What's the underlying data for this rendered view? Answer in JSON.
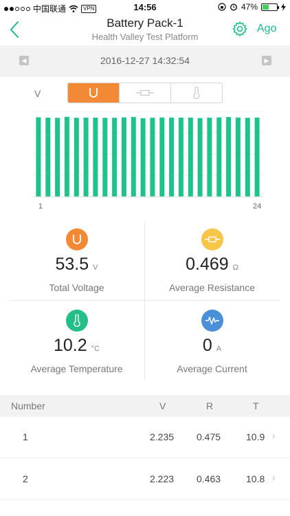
{
  "status_bar": {
    "carrier": "中国联通",
    "vpn": "VPN",
    "time": "14:56",
    "battery_percent": "47%",
    "battery_level": 0.47
  },
  "nav": {
    "title": "Battery Pack-1",
    "subtitle": "Health Valley Test Platform",
    "ago_label": "Ago",
    "accent_color": "#19b98a"
  },
  "date_bar": {
    "datetime": "2016-12-27 14:32:54"
  },
  "segment": {
    "label": "V",
    "options": [
      "voltage-icon",
      "resistance-icon",
      "temperature-icon"
    ],
    "active_index": 0,
    "active_color": "#f28a35"
  },
  "chart_data": {
    "type": "bar",
    "categories": [
      "1",
      "2",
      "3",
      "4",
      "5",
      "6",
      "7",
      "8",
      "9",
      "10",
      "11",
      "12",
      "13",
      "14",
      "15",
      "16",
      "17",
      "18",
      "19",
      "20",
      "21",
      "22",
      "23",
      "24"
    ],
    "values": [
      2.235,
      2.223,
      2.22,
      2.25,
      2.222,
      2.228,
      2.226,
      2.22,
      2.222,
      2.234,
      2.244,
      2.21,
      2.222,
      2.23,
      2.228,
      2.226,
      2.226,
      2.215,
      2.224,
      2.232,
      2.244,
      2.228,
      2.22,
      2.226
    ],
    "x_tick_labels": [
      "1",
      "24"
    ],
    "ylim": [
      0,
      2.4
    ],
    "bar_color": "#1ec28a",
    "grid": true
  },
  "stats": {
    "total_voltage": {
      "value": "53.5",
      "unit": "V",
      "label": "Total Voltage",
      "icon": "voltage-icon",
      "color": "#f28a35"
    },
    "avg_resistance": {
      "value": "0.469",
      "unit": "Ω",
      "label": "Average Resistance",
      "icon": "resistance-icon",
      "color": "#f7c548"
    },
    "avg_temperature": {
      "value": "10.2",
      "unit": "°C",
      "label": "Average Temperature",
      "icon": "thermometer-icon",
      "color": "#22c087"
    },
    "avg_current": {
      "value": "0",
      "unit": "A",
      "label": "Average Current",
      "icon": "waveform-icon",
      "color": "#4a90d9"
    }
  },
  "table": {
    "headers": {
      "number": "Number",
      "v": "V",
      "r": "R",
      "t": "T"
    },
    "rows": [
      {
        "number": "1",
        "v": "2.235",
        "r": "0.475",
        "t": "10.9"
      },
      {
        "number": "2",
        "v": "2.223",
        "r": "0.463",
        "t": "10.8"
      }
    ]
  }
}
